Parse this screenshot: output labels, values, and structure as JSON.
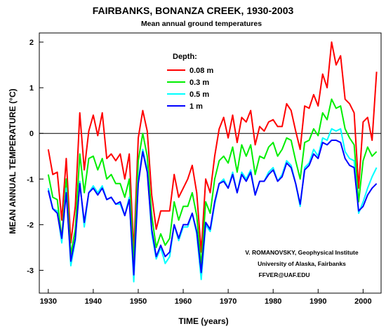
{
  "chart_data": {
    "type": "line",
    "title": "FAIRBANKS, BONANZA CREEK, 1930-2003",
    "subtitle": "Mean annual ground temperatures",
    "xlabel": "TIME (years)",
    "ylabel": "MEAN ANNUAL TEMPERATURE (°C)",
    "xlim": [
      1928,
      2004
    ],
    "ylim": [
      -3.5,
      2.2
    ],
    "x_ticks": [
      1930,
      1940,
      1950,
      1960,
      1970,
      1980,
      1990,
      2000
    ],
    "y_ticks": [
      2,
      1,
      0,
      -1,
      -2,
      -3
    ],
    "reference_line": 0,
    "legend_title": "Depth:",
    "legend_position": "top-left (inside plot)",
    "credit": [
      "V. ROMANOVSKY, Geophysical Institute",
      "University of Alaska, Fairbanks",
      "FFVER@UAF.EDU"
    ],
    "x": [
      1930,
      1931,
      1932,
      1933,
      1934,
      1935,
      1936,
      1937,
      1938,
      1939,
      1940,
      1941,
      1942,
      1943,
      1944,
      1945,
      1946,
      1947,
      1948,
      1949,
      1950,
      1951,
      1952,
      1953,
      1954,
      1955,
      1956,
      1957,
      1958,
      1959,
      1960,
      1961,
      1962,
      1963,
      1964,
      1965,
      1966,
      1967,
      1968,
      1969,
      1970,
      1971,
      1972,
      1973,
      1974,
      1975,
      1976,
      1977,
      1978,
      1979,
      1980,
      1981,
      1982,
      1983,
      1984,
      1985,
      1986,
      1987,
      1988,
      1989,
      1990,
      1991,
      1992,
      1993,
      1994,
      1995,
      1996,
      1997,
      1998,
      1999,
      2000,
      2001,
      2002,
      2003
    ],
    "series": [
      {
        "name": "0.08 m",
        "color": "#ff0000",
        "values": [
          -0.35,
          -0.9,
          -0.85,
          -1.9,
          -0.55,
          -2.4,
          -1.6,
          0.45,
          -0.8,
          0.05,
          0.4,
          -0.05,
          0.45,
          -0.55,
          -0.45,
          -0.6,
          -0.45,
          -1.0,
          -0.45,
          -2.6,
          -0.1,
          0.5,
          0.05,
          -1.35,
          -2.1,
          -1.7,
          -1.7,
          -1.7,
          -0.9,
          -1.4,
          -1.2,
          -1.0,
          -0.7,
          -1.3,
          -2.6,
          -1.0,
          -1.3,
          -0.5,
          0.1,
          0.35,
          -0.1,
          0.4,
          -0.2,
          0.35,
          0.25,
          0.5,
          -0.25,
          0.15,
          0.05,
          0.25,
          0.3,
          0.15,
          0.15,
          0.65,
          0.5,
          0.05,
          -0.35,
          0.6,
          0.55,
          0.85,
          0.6,
          1.3,
          1.0,
          2.0,
          1.5,
          1.7,
          0.75,
          0.65,
          0.45,
          -1.2,
          0.25,
          0.35,
          -0.15,
          1.35
        ]
      },
      {
        "name": "0.3 m",
        "color": "#00ee00",
        "values": [
          -0.9,
          -1.4,
          -1.45,
          -2.3,
          -1.0,
          -2.65,
          -2.1,
          -0.45,
          -1.3,
          -0.55,
          -0.5,
          -0.8,
          -0.55,
          -1.0,
          -0.9,
          -1.1,
          -1.1,
          -1.4,
          -1.0,
          -2.85,
          -0.6,
          0.0,
          -0.5,
          -1.8,
          -2.5,
          -2.2,
          -2.45,
          -2.3,
          -1.5,
          -1.9,
          -1.6,
          -1.6,
          -1.3,
          -1.8,
          -2.9,
          -1.5,
          -1.75,
          -1.0,
          -0.6,
          -0.5,
          -0.65,
          -0.3,
          -0.85,
          -0.25,
          -0.5,
          -0.25,
          -0.9,
          -0.5,
          -0.55,
          -0.3,
          -0.2,
          -0.5,
          -0.35,
          -0.1,
          -0.15,
          -0.6,
          -1.0,
          -0.2,
          -0.15,
          0.1,
          -0.05,
          0.45,
          0.3,
          0.75,
          0.55,
          0.6,
          0.1,
          -0.1,
          -0.25,
          -1.5,
          -0.6,
          -0.3,
          -0.5,
          -0.4
        ]
      },
      {
        "name": "0.5 m",
        "color": "#00ffff",
        "values": [
          -1.2,
          -1.65,
          -1.7,
          -2.4,
          -1.2,
          -2.9,
          -2.35,
          -1.05,
          -2.05,
          -1.3,
          -1.15,
          -1.3,
          -1.15,
          -1.45,
          -1.4,
          -1.55,
          -1.55,
          -1.8,
          -1.4,
          -3.25,
          -1.05,
          -0.35,
          -0.8,
          -2.2,
          -2.75,
          -2.5,
          -2.85,
          -2.7,
          -2.0,
          -2.35,
          -2.05,
          -2.05,
          -1.75,
          -2.2,
          -3.2,
          -2.0,
          -2.15,
          -1.55,
          -1.1,
          -1.0,
          -1.2,
          -0.85,
          -1.3,
          -0.85,
          -1.0,
          -0.8,
          -1.35,
          -1.05,
          -1.05,
          -0.85,
          -0.75,
          -1.05,
          -0.9,
          -0.6,
          -0.7,
          -1.1,
          -1.6,
          -0.75,
          -0.65,
          -0.35,
          -0.5,
          -0.1,
          -0.15,
          0.1,
          0.05,
          0.1,
          -0.4,
          -0.55,
          -0.6,
          -1.75,
          -1.5,
          -1.2,
          -0.95,
          -0.75
        ]
      },
      {
        "name": "1 m",
        "color": "#0000ff",
        "values": [
          -1.25,
          -1.65,
          -1.75,
          -2.3,
          -1.3,
          -2.8,
          -2.3,
          -1.1,
          -1.95,
          -1.3,
          -1.2,
          -1.35,
          -1.2,
          -1.45,
          -1.4,
          -1.55,
          -1.5,
          -1.8,
          -1.45,
          -3.1,
          -1.1,
          -0.4,
          -0.85,
          -2.1,
          -2.7,
          -2.45,
          -2.7,
          -2.6,
          -2.0,
          -2.3,
          -2.0,
          -2.0,
          -1.75,
          -2.15,
          -3.05,
          -1.95,
          -2.1,
          -1.5,
          -1.1,
          -1.05,
          -1.2,
          -0.9,
          -1.3,
          -0.9,
          -1.05,
          -0.85,
          -1.35,
          -1.05,
          -1.05,
          -0.9,
          -0.8,
          -1.05,
          -0.95,
          -0.65,
          -0.75,
          -1.1,
          -1.55,
          -0.8,
          -0.7,
          -0.45,
          -0.55,
          -0.2,
          -0.25,
          -0.15,
          -0.15,
          -0.2,
          -0.55,
          -0.7,
          -0.75,
          -1.7,
          -1.6,
          -1.35,
          -1.2,
          -1.1
        ]
      }
    ]
  }
}
